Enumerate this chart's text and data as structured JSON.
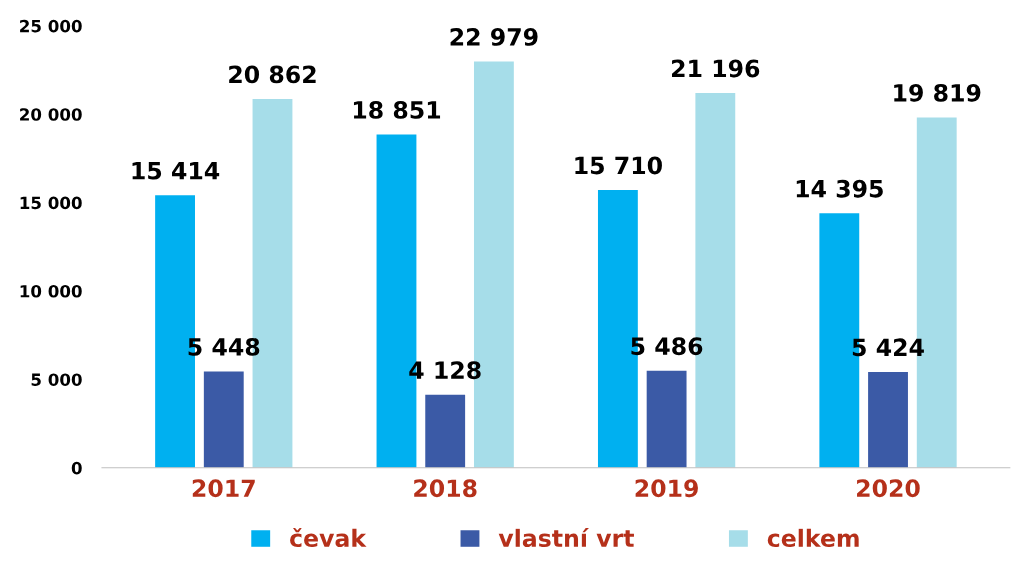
{
  "chart_data": {
    "type": "bar",
    "categories": [
      "2017",
      "2018",
      "2019",
      "2020"
    ],
    "series": [
      {
        "name": "čevak",
        "color": "#00b0f0",
        "values": [
          15414,
          18851,
          15710,
          14395
        ],
        "value_labels": [
          "15 414",
          "18 851",
          "15 710",
          "14 395"
        ]
      },
      {
        "name": "vlastní vrt",
        "color": "#3b5aa6",
        "values": [
          5448,
          4128,
          5486,
          5424
        ],
        "value_labels": [
          "5 448",
          "4 128",
          "5 486",
          "5 424"
        ]
      },
      {
        "name": "celkem",
        "color": "#a6dde9",
        "values": [
          20862,
          22979,
          21196,
          19819
        ],
        "value_labels": [
          "20 862",
          "22 979",
          "21 196",
          "19 819"
        ]
      }
    ],
    "ylim": [
      0,
      25000
    ],
    "yticks": [
      {
        "value": 0,
        "label": "0"
      },
      {
        "value": 5000,
        "label": "5 000"
      },
      {
        "value": 10000,
        "label": "10 000"
      },
      {
        "value": 15000,
        "label": "15 000"
      },
      {
        "value": 20000,
        "label": "20 000"
      },
      {
        "value": 25000,
        "label": "25 000"
      }
    ],
    "grid": false,
    "legend": "bottom"
  }
}
